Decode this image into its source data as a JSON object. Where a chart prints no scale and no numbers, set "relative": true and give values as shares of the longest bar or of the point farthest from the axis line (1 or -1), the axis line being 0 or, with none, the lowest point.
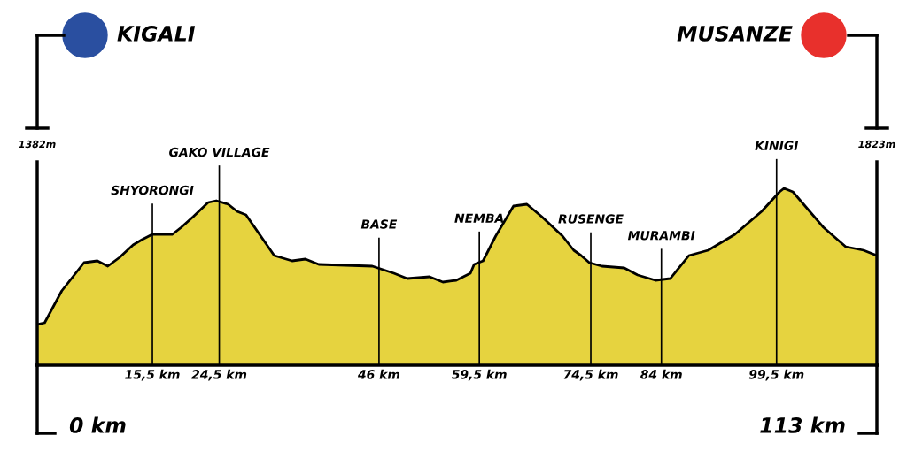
{
  "chart_data": {
    "type": "area",
    "relative": true,
    "xlim": [
      0,
      113
    ],
    "xticks": [
      {
        "value": 15.5,
        "label": "15,5 km"
      },
      {
        "value": 24.5,
        "label": "24,5 km"
      },
      {
        "value": 46,
        "label": "46 km"
      },
      {
        "value": 59.5,
        "label": "59,5 km"
      },
      {
        "value": 74.5,
        "label": "74,5 km"
      },
      {
        "value": 84,
        "label": "84 km"
      },
      {
        "value": 99.5,
        "label": "99,5 km"
      }
    ],
    "series": [
      {
        "color": "#e6d33f",
        "x": [
          0,
          1.0,
          3.3,
          6.3,
          8.1,
          9.5,
          11.1,
          12.9,
          14.1,
          15.5,
          18.2,
          19.4,
          21.0,
          23.0,
          24.1,
          25.7,
          26.9,
          28.1,
          31.9,
          34.3,
          36.1,
          37.9,
          45.1,
          48.0,
          49.8,
          52.8,
          54.6,
          56.4,
          58.3,
          58.8,
          60.0,
          61.7,
          64.1,
          65.9,
          67.9,
          70.7,
          72.2,
          73.2,
          74.3,
          76.0,
          79.0,
          80.8,
          83.2,
          85.2,
          87.7,
          90.3,
          93.9,
          97.5,
          99.9,
          100.5,
          101.7,
          105.8,
          108.8,
          111.2,
          113
        ],
        "values": [
          0.23,
          0.24,
          0.42,
          0.58,
          0.59,
          0.56,
          0.61,
          0.68,
          0.71,
          0.74,
          0.74,
          0.78,
          0.84,
          0.92,
          0.93,
          0.91,
          0.87,
          0.85,
          0.62,
          0.59,
          0.6,
          0.57,
          0.56,
          0.52,
          0.49,
          0.5,
          0.47,
          0.48,
          0.52,
          0.57,
          0.59,
          0.73,
          0.9,
          0.91,
          0.84,
          0.73,
          0.65,
          0.62,
          0.58,
          0.56,
          0.55,
          0.51,
          0.48,
          0.49,
          0.62,
          0.65,
          0.74,
          0.87,
          0.98,
          1.0,
          0.98,
          0.78,
          0.67,
          0.65,
          0.62
        ]
      }
    ],
    "ref_lines": [
      {
        "axis": "x",
        "value": 15.5,
        "label": "SHYORONGI"
      },
      {
        "axis": "x",
        "value": 24.5,
        "label": "GAKO VILLAGE"
      },
      {
        "axis": "x",
        "value": 46,
        "label": "BASE"
      },
      {
        "axis": "x",
        "value": 59.5,
        "label": "NEMBA"
      },
      {
        "axis": "x",
        "value": 74.5,
        "label": "RUSENGE"
      },
      {
        "axis": "x",
        "value": 84,
        "label": "MURAMBI"
      },
      {
        "axis": "x",
        "value": 99.5,
        "label": "KINIGI"
      }
    ],
    "annotations": [
      "KIGALI",
      "MUSANZE",
      "1382m",
      "1823m",
      "0 km",
      "113 km"
    ]
  }
}
